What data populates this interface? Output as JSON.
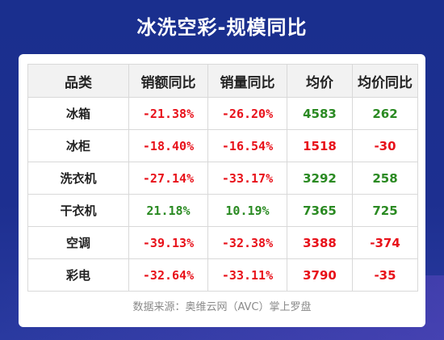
{
  "title": "冰洗空彩-规模同比",
  "table": {
    "headers": [
      "品类",
      "销额同比",
      "销量同比",
      "均价",
      "均价同比"
    ],
    "rows": [
      {
        "category": "冰箱",
        "sales_yoy": "-21.38%",
        "volume_yoy": "-26.20%",
        "avg_price": "4583",
        "avg_price_yoy": "262"
      },
      {
        "category": "冰柜",
        "sales_yoy": "-18.40%",
        "volume_yoy": "-16.54%",
        "avg_price": "1518",
        "avg_price_yoy": "-30"
      },
      {
        "category": "洗衣机",
        "sales_yoy": "-27.14%",
        "volume_yoy": "-33.17%",
        "avg_price": "3292",
        "avg_price_yoy": "258"
      },
      {
        "category": "干衣机",
        "sales_yoy": "21.18%",
        "volume_yoy": "10.19%",
        "avg_price": "7365",
        "avg_price_yoy": "725"
      },
      {
        "category": "空调",
        "sales_yoy": "-39.13%",
        "volume_yoy": "-32.38%",
        "avg_price": "3388",
        "avg_price_yoy": "-374"
      },
      {
        "category": "彩电",
        "sales_yoy": "-32.64%",
        "volume_yoy": "-33.11%",
        "avg_price": "3790",
        "avg_price_yoy": "-35"
      }
    ]
  },
  "source": "数据来源：奥维云网（AVC）掌上罗盘",
  "colors": {
    "background": "#1d2f90",
    "negative": "#e8111a",
    "positive": "#2a8a22"
  }
}
